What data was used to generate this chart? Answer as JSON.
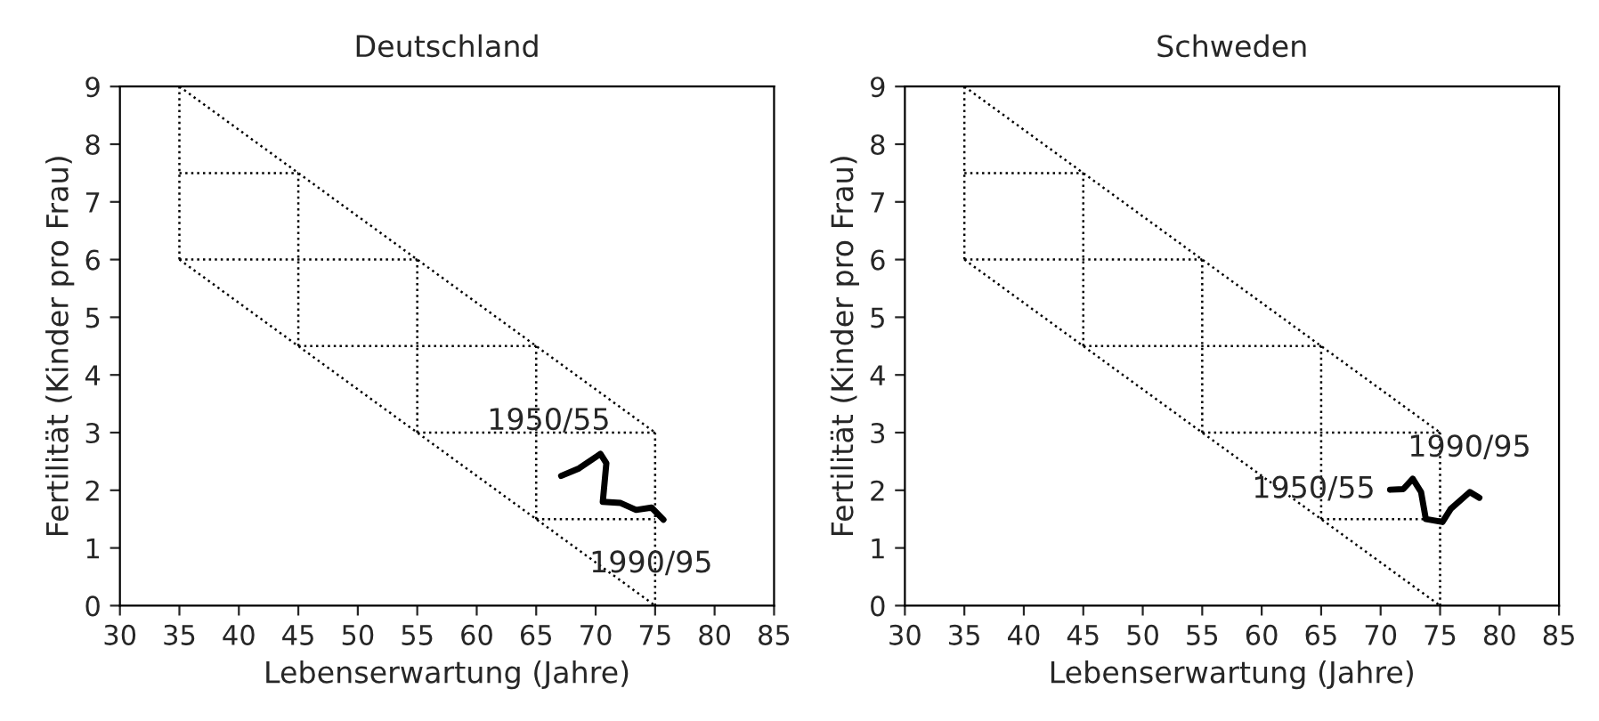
{
  "chart_data": [
    {
      "type": "line",
      "title": "Deutschland",
      "xlabel": "Lebenserwartung (Jahre)",
      "ylabel": "Fertilität (Kinder pro Frau)",
      "xlim": [
        30,
        85
      ],
      "ylim": [
        0,
        9
      ],
      "xticks": [
        30,
        35,
        40,
        45,
        50,
        55,
        60,
        65,
        70,
        75,
        80,
        85
      ],
      "yticks": [
        0,
        1,
        2,
        3,
        4,
        5,
        6,
        7,
        8,
        9
      ],
      "grid": false,
      "legend": false,
      "series": [
        {
          "color": "#000000",
          "line_style": "solid",
          "x": [
            67.1,
            68.6,
            70.4,
            70.9,
            70.6,
            72.1,
            73.4,
            74.7,
            75.7
          ],
          "values": [
            2.25,
            2.38,
            2.63,
            2.47,
            1.8,
            1.78,
            1.66,
            1.7,
            1.49
          ]
        },
        {
          "color": "#000000",
          "line_style": "dotted",
          "x": [
            35,
            75
          ],
          "values": [
            9,
            3
          ]
        },
        {
          "color": "#000000",
          "line_style": "dotted",
          "x": [
            35,
            75
          ],
          "values": [
            6,
            0
          ]
        },
        {
          "color": "#000000",
          "line_style": "dotted",
          "x": [
            35,
            45
          ],
          "values": [
            7.5,
            7.5
          ]
        },
        {
          "color": "#000000",
          "line_style": "dotted",
          "x": [
            35,
            55
          ],
          "values": [
            6,
            6
          ]
        },
        {
          "color": "#000000",
          "line_style": "dotted",
          "x": [
            45,
            65
          ],
          "values": [
            4.5,
            4.5
          ]
        },
        {
          "color": "#000000",
          "line_style": "dotted",
          "x": [
            55,
            75
          ],
          "values": [
            3,
            3
          ]
        },
        {
          "color": "#000000",
          "line_style": "dotted",
          "x": [
            65,
            75
          ],
          "values": [
            1.5,
            1.5
          ]
        },
        {
          "color": "#000000",
          "line_style": "dotted",
          "x": [
            35,
            35
          ],
          "values": [
            6,
            9
          ]
        },
        {
          "color": "#000000",
          "line_style": "dotted",
          "x": [
            45,
            45
          ],
          "values": [
            4.5,
            7.5
          ]
        },
        {
          "color": "#000000",
          "line_style": "dotted",
          "x": [
            55,
            55
          ],
          "values": [
            3,
            6
          ]
        },
        {
          "color": "#000000",
          "line_style": "dotted",
          "x": [
            65,
            65
          ],
          "values": [
            1.5,
            4.5
          ]
        },
        {
          "color": "#000000",
          "line_style": "dotted",
          "x": [
            75,
            75
          ],
          "values": [
            0,
            3
          ]
        }
      ],
      "annotations": [
        {
          "text": "1950/55",
          "x": 67.1,
          "y": 2.25
        },
        {
          "text": "1990/95",
          "x": 75.7,
          "y": 1.49
        }
      ]
    },
    {
      "type": "line",
      "title": "Schweden",
      "xlabel": "Lebenserwartung (Jahre)",
      "ylabel": "Fertilität (Kinder pro Frau)",
      "xlim": [
        30,
        85
      ],
      "ylim": [
        0,
        9
      ],
      "xticks": [
        30,
        35,
        40,
        45,
        50,
        55,
        60,
        65,
        70,
        75,
        80,
        85
      ],
      "yticks": [
        0,
        1,
        2,
        3,
        4,
        5,
        6,
        7,
        8,
        9
      ],
      "grid": false,
      "legend": false,
      "series": [
        {
          "color": "#000000",
          "line_style": "solid",
          "x": [
            70.8,
            71.9,
            72.7,
            73.4,
            73.8,
            75.2,
            75.9,
            77.5,
            78.3
          ],
          "values": [
            2.01,
            2.02,
            2.2,
            1.97,
            1.5,
            1.45,
            1.68,
            1.97,
            1.87
          ]
        },
        {
          "color": "#000000",
          "line_style": "dotted",
          "x": [
            35,
            75
          ],
          "values": [
            9,
            3
          ]
        },
        {
          "color": "#000000",
          "line_style": "dotted",
          "x": [
            35,
            75
          ],
          "values": [
            6,
            0
          ]
        },
        {
          "color": "#000000",
          "line_style": "dotted",
          "x": [
            35,
            45
          ],
          "values": [
            7.5,
            7.5
          ]
        },
        {
          "color": "#000000",
          "line_style": "dotted",
          "x": [
            35,
            55
          ],
          "values": [
            6,
            6
          ]
        },
        {
          "color": "#000000",
          "line_style": "dotted",
          "x": [
            45,
            65
          ],
          "values": [
            4.5,
            4.5
          ]
        },
        {
          "color": "#000000",
          "line_style": "dotted",
          "x": [
            55,
            75
          ],
          "values": [
            3,
            3
          ]
        },
        {
          "color": "#000000",
          "line_style": "dotted",
          "x": [
            65,
            75
          ],
          "values": [
            1.5,
            1.5
          ]
        },
        {
          "color": "#000000",
          "line_style": "dotted",
          "x": [
            35,
            35
          ],
          "values": [
            6,
            9
          ]
        },
        {
          "color": "#000000",
          "line_style": "dotted",
          "x": [
            45,
            45
          ],
          "values": [
            4.5,
            7.5
          ]
        },
        {
          "color": "#000000",
          "line_style": "dotted",
          "x": [
            55,
            55
          ],
          "values": [
            3,
            6
          ]
        },
        {
          "color": "#000000",
          "line_style": "dotted",
          "x": [
            65,
            65
          ],
          "values": [
            1.5,
            4.5
          ]
        },
        {
          "color": "#000000",
          "line_style": "dotted",
          "x": [
            75,
            75
          ],
          "values": [
            0,
            3
          ]
        }
      ],
      "annotations": [
        {
          "text": "1950/55",
          "x": 70.8,
          "y": 2.01
        },
        {
          "text": "1990/95",
          "x": 78.3,
          "y": 1.87
        }
      ]
    }
  ]
}
